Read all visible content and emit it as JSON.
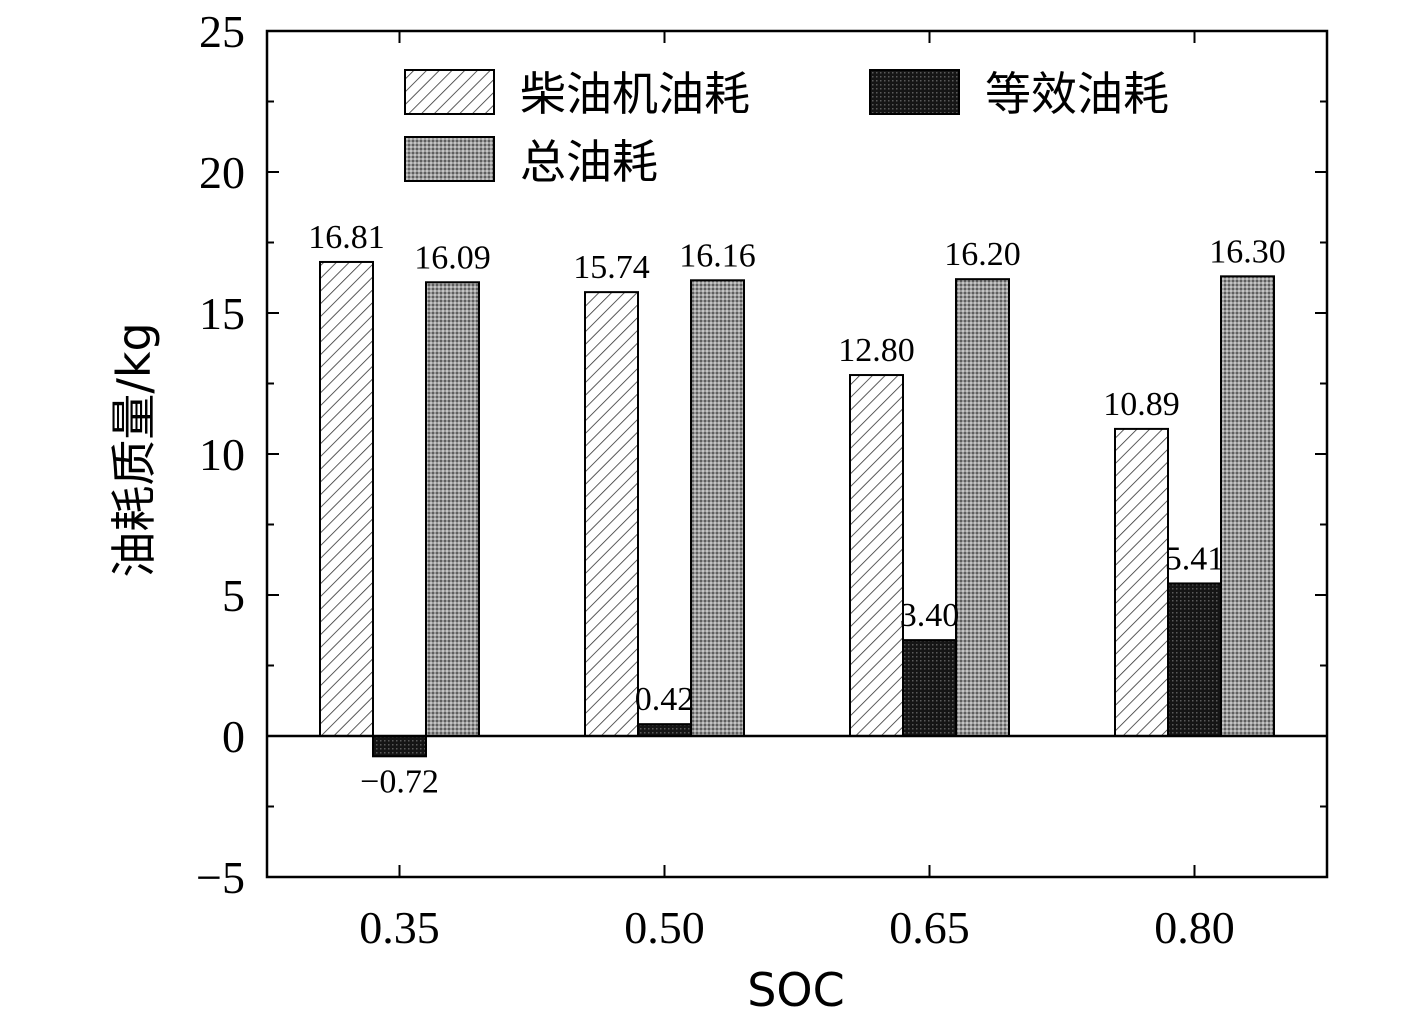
{
  "chart_data": {
    "type": "bar",
    "xlabel": "SOC",
    "ylabel": "油耗质量/kg",
    "categories": [
      "0.35",
      "0.50",
      "0.65",
      "0.80"
    ],
    "ylim": [
      -5,
      25
    ],
    "yticks": [
      -5,
      0,
      5,
      10,
      15,
      20,
      25
    ],
    "ytick_labels": [
      "−5",
      "0",
      "5",
      "10",
      "15",
      "20",
      "25"
    ],
    "grid": false,
    "legend_position": "top",
    "series": [
      {
        "name": "柴油机油耗",
        "pattern": "diagonal-hatch",
        "color": "#ffffff",
        "values": [
          16.81,
          15.74,
          12.8,
          10.89
        ],
        "labels": [
          "16.81",
          "15.74",
          "12.80",
          "10.89"
        ]
      },
      {
        "name": "等效油耗",
        "pattern": "dark-dots",
        "color": "#111111",
        "values": [
          -0.72,
          0.42,
          3.4,
          5.41
        ],
        "labels": [
          "−0.72",
          "0.42",
          "3.40",
          "5.41"
        ]
      },
      {
        "name": "总油耗",
        "pattern": "gray-dots",
        "color": "#8c8c8c",
        "values": [
          16.09,
          16.16,
          16.2,
          16.3
        ],
        "labels": [
          "16.09",
          "16.16",
          "16.20",
          "16.30"
        ]
      }
    ]
  }
}
